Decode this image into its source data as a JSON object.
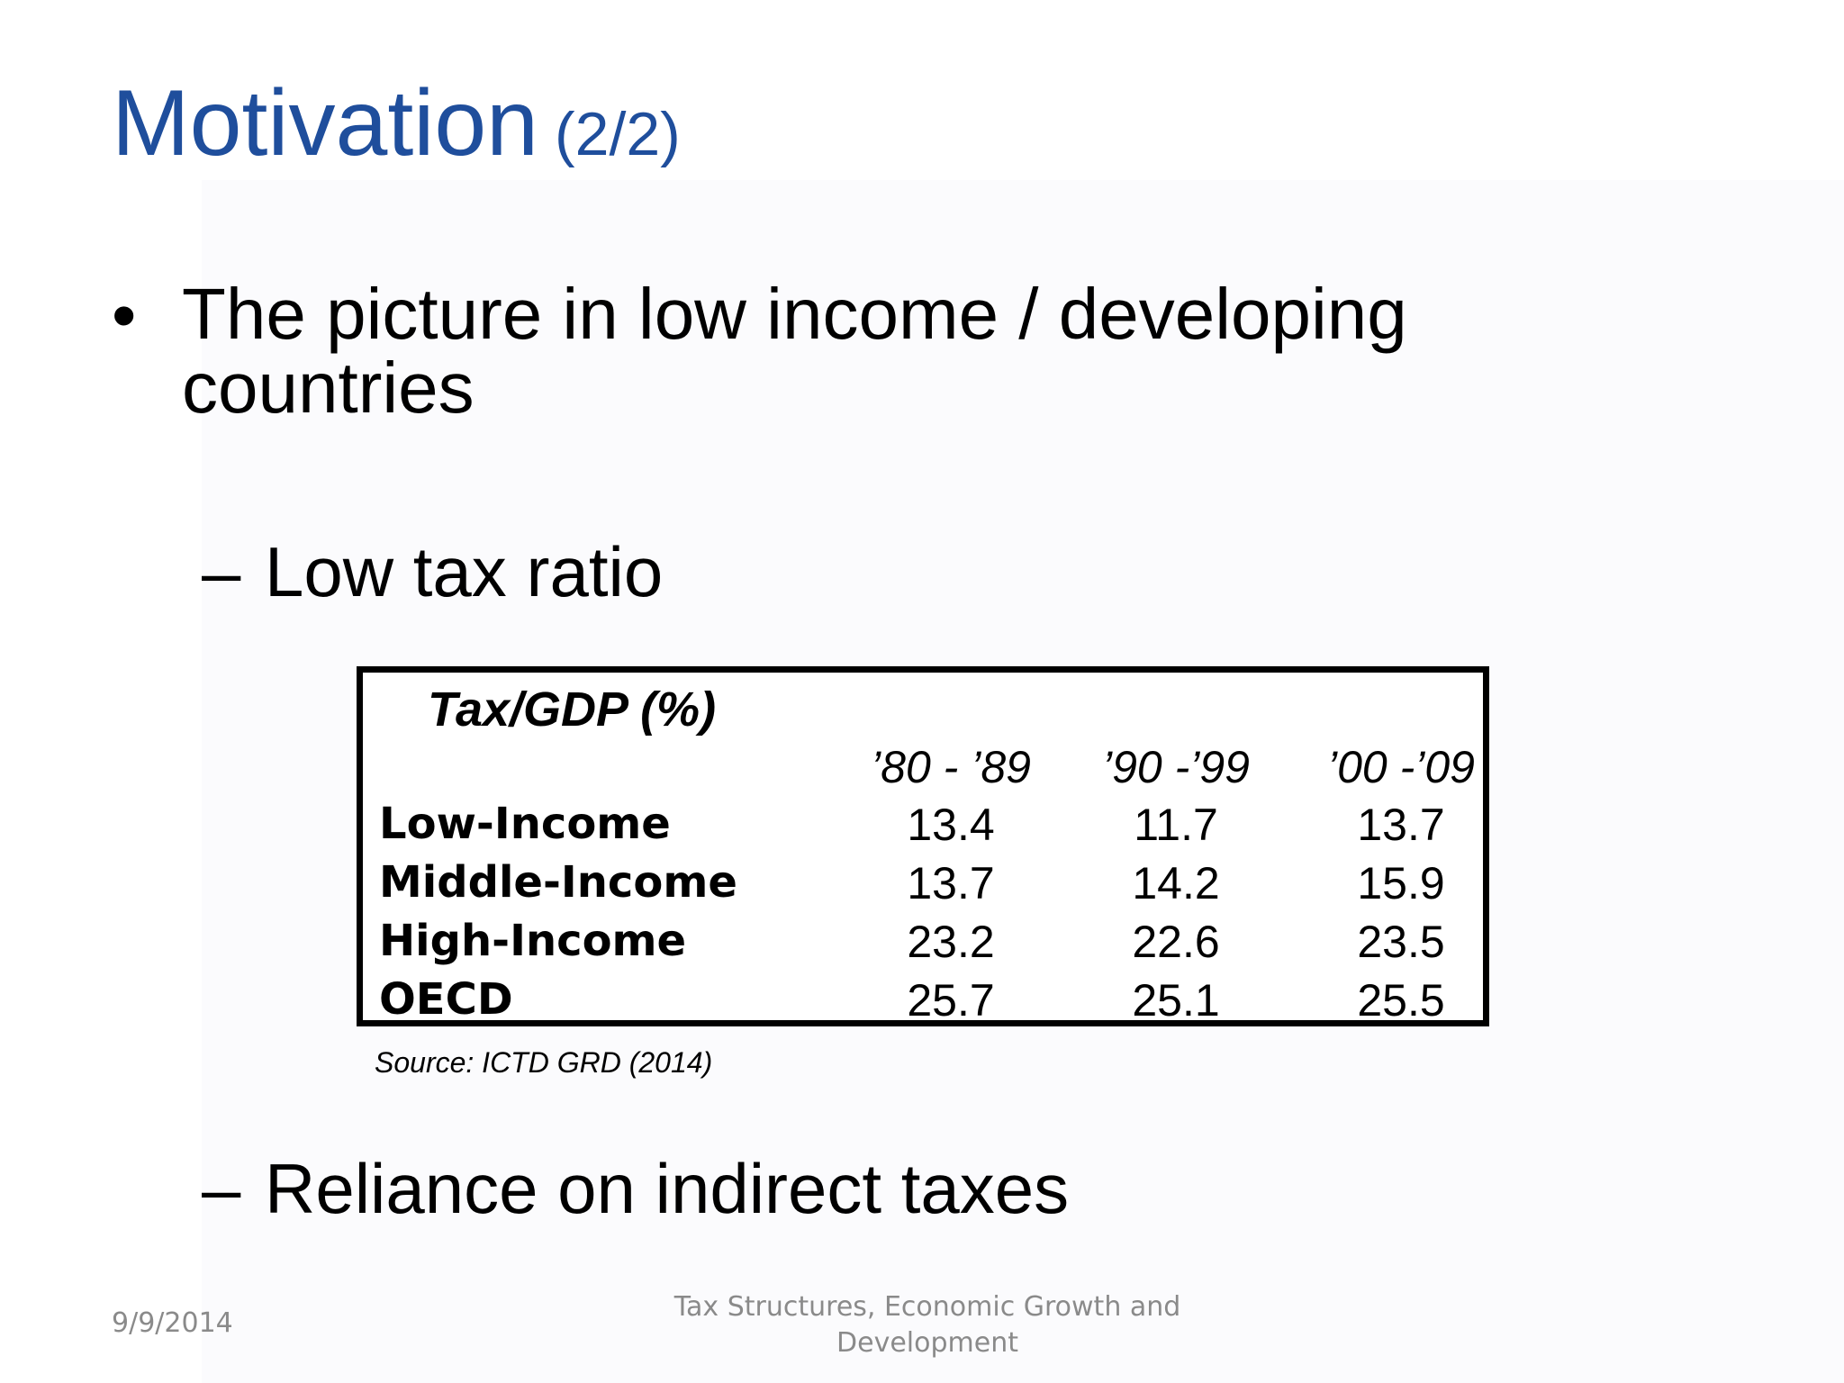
{
  "slide": {
    "title_main": "Motivation",
    "title_sub": "(2/2)",
    "bullet_symbol": "•",
    "bullet_text": "The picture in low income / developing countries",
    "sub_bullets": [
      {
        "dash": "–",
        "text": "Low tax ratio"
      },
      {
        "dash": "–",
        "text": "Reliance on indirect taxes"
      }
    ],
    "title_color": "#1f4e9c"
  },
  "table": {
    "title": "Tax/GDP (%)",
    "columns": [
      "’80 - ’89",
      "’90 -’99",
      "’00 -’09"
    ],
    "rows": [
      {
        "label": "Low-Income",
        "values": [
          "13.4",
          "11.7",
          "13.7"
        ]
      },
      {
        "label": "Middle-Income",
        "values": [
          "13.7",
          "14.2",
          "15.9"
        ]
      },
      {
        "label": "High-Income",
        "values": [
          "23.2",
          "22.6",
          "23.5"
        ]
      },
      {
        "label": "OECD",
        "values": [
          "25.7",
          "25.1",
          "25.5"
        ]
      }
    ],
    "source": "Source: ICTD GRD (2014)"
  },
  "footer": {
    "date": "9/9/2014",
    "title": "Tax Structures, Economic Growth and Development"
  }
}
